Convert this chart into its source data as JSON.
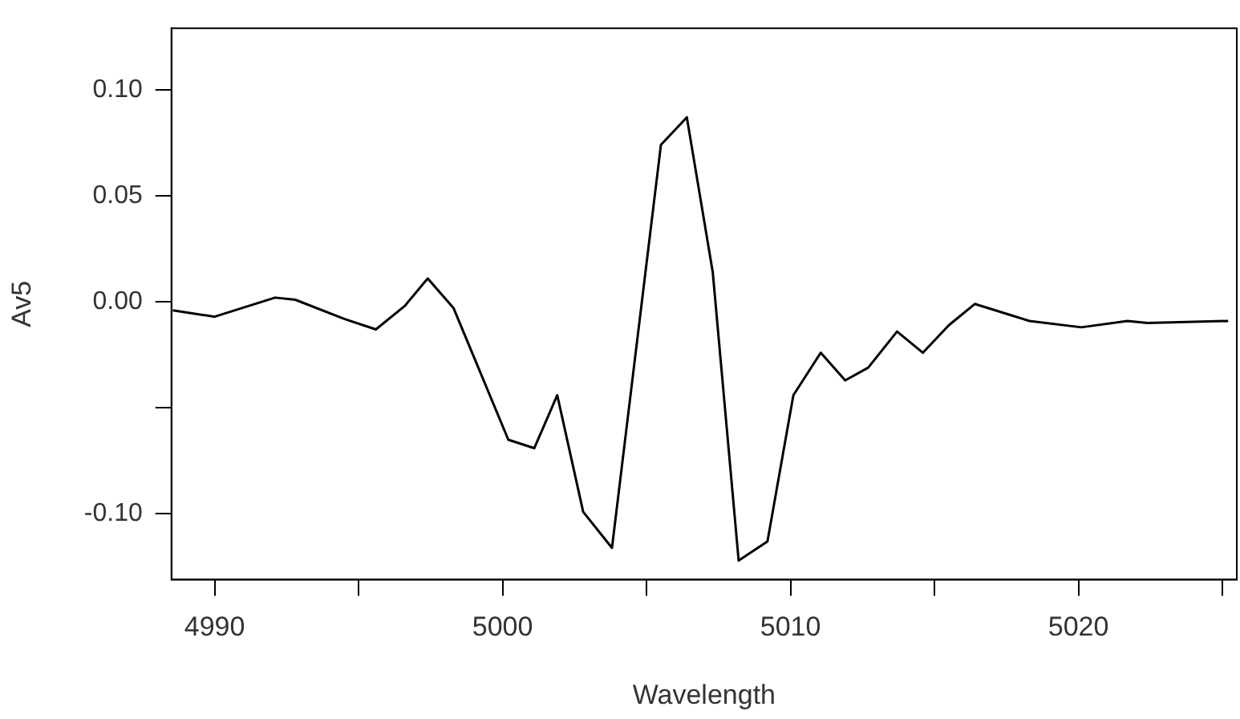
{
  "chart_data": {
    "type": "line",
    "xlabel": "Wavelength",
    "ylabel": "Av5",
    "x": [
      4988.55,
      4990.0,
      4992.1,
      4992.8,
      4994.5,
      4995.6,
      4996.6,
      4997.4,
      4998.3,
      5000.2,
      5001.1,
      5001.9,
      5002.8,
      5003.8,
      5005.5,
      5006.4,
      5007.3,
      5008.2,
      5009.2,
      5010.1,
      5011.05,
      5011.9,
      5012.7,
      5013.7,
      5014.6,
      5015.5,
      5016.4,
      5018.3,
      5020.1,
      5021.7,
      5022.4,
      5025.2
    ],
    "series": [
      {
        "color": "#000000",
        "values": [
          -0.004,
          -0.007,
          0.002,
          0.001,
          -0.008,
          -0.013,
          -0.002,
          0.011,
          -0.003,
          -0.065,
          -0.069,
          -0.044,
          -0.099,
          -0.116,
          0.074,
          0.087,
          0.014,
          -0.122,
          -0.113,
          -0.044,
          -0.024,
          -0.037,
          -0.031,
          -0.014,
          -0.024,
          -0.011,
          -0.001,
          -0.009,
          -0.012,
          -0.009,
          -0.01,
          -0.009
        ]
      }
    ],
    "xlim": [
      4988.5,
      5025.5
    ],
    "ylim": [
      -0.131,
      0.129
    ],
    "xticks": [
      4990,
      {
        "value": 4995,
        "label": null
      },
      5000,
      {
        "value": 5005,
        "label": null
      },
      5010,
      {
        "value": 5015,
        "label": null
      },
      5020,
      {
        "value": 5025,
        "label": null
      }
    ],
    "yticks": [
      {
        "value": -0.1,
        "label": "-0.10"
      },
      {
        "value": -0.05,
        "label": null
      },
      {
        "value": 0,
        "label": "0.00"
      },
      {
        "value": 0.05,
        "label": "0.05"
      },
      {
        "value": 0.1,
        "label": "0.10"
      }
    ],
    "grid": false,
    "legend": false,
    "marker": "none",
    "line_style": "solid"
  }
}
